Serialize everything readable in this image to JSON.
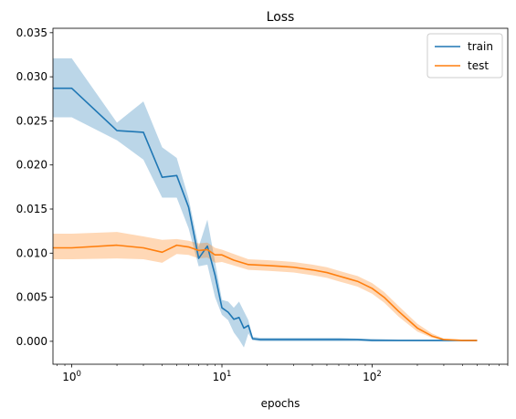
{
  "chart_data": {
    "type": "line",
    "title": "Loss",
    "xlabel": "epochs",
    "ylabel": "",
    "xscale": "log",
    "xlim": [
      0.75,
      800
    ],
    "ylim": [
      -0.0026,
      0.0355
    ],
    "grid": false,
    "legend_position": "top-right",
    "x_ticks": [
      {
        "value": 1,
        "label": "10^0"
      },
      {
        "value": 10,
        "label": "10^1"
      },
      {
        "value": 100,
        "label": "10^2"
      }
    ],
    "y_ticks": [
      {
        "value": 0.0,
        "label": "0.000"
      },
      {
        "value": 0.005,
        "label": "0.005"
      },
      {
        "value": 0.01,
        "label": "0.010"
      },
      {
        "value": 0.015,
        "label": "0.015"
      },
      {
        "value": 0.02,
        "label": "0.020"
      },
      {
        "value": 0.025,
        "label": "0.025"
      },
      {
        "value": 0.03,
        "label": "0.030"
      },
      {
        "value": 0.035,
        "label": "0.035"
      }
    ],
    "series": [
      {
        "name": "train",
        "color": "#1f77b4",
        "band_color": "#1f77b4",
        "x": [
          0.75,
          1,
          2,
          3,
          4,
          5,
          6,
          7,
          8,
          9,
          10,
          11,
          12,
          13,
          14,
          15,
          16,
          18,
          20,
          25,
          30,
          40,
          50,
          60,
          80,
          100,
          150,
          200,
          300,
          400,
          500
        ],
        "y": [
          0.0287,
          0.0287,
          0.0239,
          0.0237,
          0.0186,
          0.0188,
          0.0152,
          0.0094,
          0.0108,
          0.0075,
          0.0038,
          0.0033,
          0.0025,
          0.0027,
          0.0015,
          0.0018,
          0.0003,
          0.0002,
          0.0002,
          0.0002,
          0.0002,
          0.0002,
          0.0002,
          0.0002,
          0.0002,
          0.0001,
          0.0001,
          0.0001,
          0.0001,
          0.0001,
          0.0001
        ],
        "lower": [
          0.0254,
          0.0254,
          0.0228,
          0.0206,
          0.0163,
          0.0163,
          0.0128,
          0.0085,
          0.0087,
          0.005,
          0.003,
          0.0024,
          0.001,
          0.0002,
          -0.0007,
          0.0009,
          0.0001,
          0.0,
          0.0,
          0.0,
          0.0,
          0.0,
          0.0,
          0.0,
          0.0,
          0.0,
          0.0,
          0.0,
          0.0,
          0.0,
          0.0
        ],
        "upper": [
          0.0321,
          0.0321,
          0.0248,
          0.0272,
          0.022,
          0.0208,
          0.0162,
          0.0107,
          0.0138,
          0.009,
          0.0047,
          0.0045,
          0.0038,
          0.0045,
          0.0034,
          0.0024,
          0.0005,
          0.0004,
          0.0004,
          0.0004,
          0.0004,
          0.0004,
          0.0004,
          0.0004,
          0.0003,
          0.0003,
          0.0002,
          0.0002,
          0.0002,
          0.0002,
          0.0002
        ]
      },
      {
        "name": "test",
        "color": "#ff7f0e",
        "band_color": "#ff7f0e",
        "x": [
          0.75,
          1,
          2,
          3,
          4,
          5,
          6,
          7,
          8,
          9,
          10,
          12,
          15,
          20,
          25,
          30,
          40,
          50,
          60,
          80,
          100,
          120,
          150,
          200,
          250,
          300,
          400,
          500
        ],
        "y": [
          0.0106,
          0.0106,
          0.0109,
          0.0106,
          0.0101,
          0.0109,
          0.0107,
          0.0103,
          0.0104,
          0.0098,
          0.0098,
          0.0092,
          0.0087,
          0.0086,
          0.0085,
          0.0084,
          0.0081,
          0.0078,
          0.0074,
          0.0068,
          0.006,
          0.005,
          0.0034,
          0.0015,
          0.0006,
          0.0002,
          0.0001,
          0.0001
        ],
        "lower": [
          0.0093,
          0.0093,
          0.0094,
          0.0093,
          0.0089,
          0.0099,
          0.0098,
          0.0094,
          0.0095,
          0.0089,
          0.009,
          0.0086,
          0.0081,
          0.008,
          0.0079,
          0.0078,
          0.0075,
          0.0072,
          0.0068,
          0.0062,
          0.0054,
          0.0044,
          0.0028,
          0.0011,
          0.0004,
          0.0001,
          0.0,
          0.0
        ],
        "upper": [
          0.0122,
          0.0122,
          0.0124,
          0.0119,
          0.0115,
          0.0116,
          0.0114,
          0.0111,
          0.0112,
          0.0106,
          0.0104,
          0.0099,
          0.0093,
          0.0092,
          0.0091,
          0.009,
          0.0087,
          0.0084,
          0.008,
          0.0074,
          0.0066,
          0.0056,
          0.004,
          0.002,
          0.0009,
          0.0003,
          0.0002,
          0.0002
        ]
      }
    ]
  }
}
